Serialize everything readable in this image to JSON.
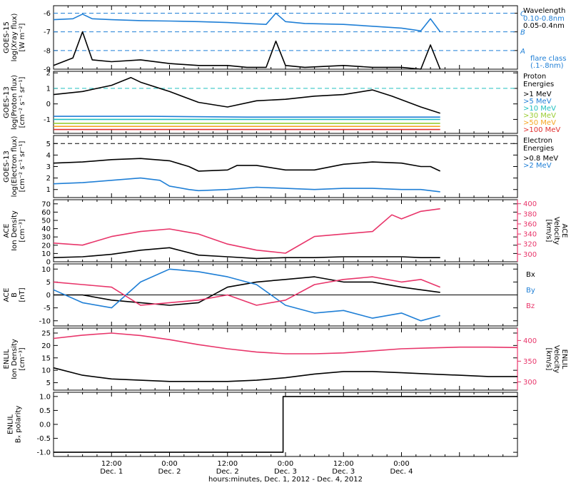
{
  "chart_data": {
    "type": "line",
    "time_axis": {
      "xlabel": "hours:minutes, Dec.  1, 2012 - Dec.  4, 2012",
      "range_hours": [
        0,
        96
      ],
      "ticks": [
        {
          "hour": 12,
          "time": "12:00",
          "day": "Dec. 1"
        },
        {
          "hour": 24,
          "time": "0:00",
          "day": "Dec. 2"
        },
        {
          "hour": 36,
          "time": "12:00",
          "day": "Dec. 2"
        },
        {
          "hour": 48,
          "time": "0:00",
          "day": "Dec. 3"
        },
        {
          "hour": 60,
          "time": "12:00",
          "day": "Dec. 3"
        },
        {
          "hour": 72,
          "time": "0:00",
          "day": "Dec. 4"
        }
      ]
    },
    "panels": [
      {
        "id": "xray",
        "ylabel_lines": [
          "GOES-15",
          "log(Xray flux)",
          "[W m⁻²]"
        ],
        "ylim": [
          -9,
          -5.6
        ],
        "yticks": [
          "-9",
          "-8",
          "-7",
          "-6"
        ],
        "ytick_values": [
          -9,
          -8,
          -7,
          -6
        ],
        "legend_title": "Wavelength",
        "series": [
          {
            "name": "0.10-0.8nm",
            "color": "#1f7fd6",
            "x": [
              0,
              4,
              6,
              8,
              12,
              18,
              24,
              30,
              36,
              40,
              44,
              46,
              48,
              52,
              60,
              66,
              72,
              76,
              78,
              80
            ],
            "y": [
              -6.35,
              -6.3,
              -6.05,
              -6.3,
              -6.35,
              -6.4,
              -6.42,
              -6.45,
              -6.5,
              -6.55,
              -6.6,
              -6.0,
              -6.45,
              -6.55,
              -6.6,
              -6.7,
              -6.8,
              -6.95,
              -6.3,
              -7.0
            ]
          },
          {
            "name": "0.05-0.4nm",
            "color": "#000000",
            "x": [
              0,
              4,
              6,
              8,
              12,
              18,
              24,
              30,
              36,
              40,
              44,
              46,
              48,
              52,
              60,
              66,
              72,
              76,
              78,
              80
            ],
            "y": [
              -8.8,
              -8.4,
              -7.0,
              -8.5,
              -8.6,
              -8.5,
              -8.7,
              -8.8,
              -8.8,
              -8.9,
              -8.9,
              -7.5,
              -8.8,
              -8.9,
              -8.8,
              -8.9,
              -8.9,
              -9.0,
              -7.7,
              -9.0
            ]
          }
        ],
        "thresholds": [
          {
            "value": -6,
            "label": "C"
          },
          {
            "value": -7,
            "label": "B"
          },
          {
            "value": -8,
            "label": "A"
          }
        ],
        "threshold_color": "#1f7fd6",
        "legend_extra": [
          "flare class",
          "(.1-.8nm)"
        ]
      },
      {
        "id": "proton",
        "ylabel_lines": [
          "GOES-13",
          "log(Proton flux)",
          "[cm⁻² s⁻¹ sr⁻¹]"
        ],
        "ylim": [
          -1.9,
          2.1
        ],
        "yticks": [
          "-1",
          "0",
          "1",
          "2"
        ],
        "ytick_values": [
          -1,
          0,
          1,
          2
        ],
        "legend_title": "Proton",
        "legend_title2": "Energies",
        "reference_line": 1.0,
        "series": [
          {
            "name": ">1 MeV",
            "color": "#000000",
            "x": [
              0,
              6,
              12,
              16,
              18,
              24,
              30,
              36,
              42,
              48,
              54,
              60,
              66,
              70,
              76,
              80
            ],
            "y": [
              0.6,
              0.8,
              1.2,
              1.7,
              1.4,
              0.8,
              0.1,
              -0.2,
              0.2,
              0.3,
              0.5,
              0.6,
              0.9,
              0.5,
              -0.2,
              -0.6
            ]
          },
          {
            "name": ">5 MeV",
            "color": "#1f7fd6",
            "x": [
              0,
              20,
              40,
              60,
              80
            ],
            "y": [
              -0.8,
              -0.8,
              -0.85,
              -0.85,
              -0.85
            ]
          },
          {
            "name": ">10 MeV",
            "color": "#20c0c0",
            "x": [
              0,
              20,
              40,
              60,
              80
            ],
            "y": [
              -1.0,
              -1.0,
              -1.0,
              -1.0,
              -1.0
            ]
          },
          {
            "name": ">30 MeV",
            "color": "#9acd32",
            "x": [
              0,
              20,
              40,
              60,
              80
            ],
            "y": [
              -1.25,
              -1.25,
              -1.25,
              -1.25,
              -1.25
            ]
          },
          {
            "name": ">50 MeV",
            "color": "#f5a623",
            "x": [
              0,
              20,
              40,
              60,
              80
            ],
            "y": [
              -1.45,
              -1.45,
              -1.45,
              -1.45,
              -1.45
            ]
          },
          {
            "name": ">100 MeV",
            "color": "#e03030",
            "x": [
              0,
              20,
              40,
              60,
              80
            ],
            "y": [
              -1.65,
              -1.65,
              -1.65,
              -1.65,
              -1.65
            ]
          }
        ]
      },
      {
        "id": "electron",
        "ylabel_lines": [
          "GOES-13",
          "log(Electron flux)",
          "[cm⁻² s⁻¹ sr⁻¹]"
        ],
        "ylim": [
          0.3,
          5.7
        ],
        "yticks": [
          "1",
          "2",
          "3",
          "4",
          "5"
        ],
        "ytick_values": [
          1,
          2,
          3,
          4,
          5
        ],
        "legend_title": "Electron",
        "legend_title2": "Energies",
        "reference_line": 5.0,
        "series": [
          {
            "name": ">0.8 MeV",
            "color": "#000000",
            "x": [
              0,
              6,
              12,
              18,
              24,
              28,
              30,
              36,
              38,
              42,
              48,
              54,
              60,
              66,
              72,
              76,
              78,
              80
            ],
            "y": [
              3.3,
              3.4,
              3.6,
              3.7,
              3.5,
              3.0,
              2.6,
              2.7,
              3.1,
              3.1,
              2.7,
              2.7,
              3.2,
              3.4,
              3.3,
              3.0,
              3.0,
              2.6
            ]
          },
          {
            "name": ">2 MeV",
            "color": "#1f7fd6",
            "x": [
              0,
              6,
              12,
              18,
              22,
              24,
              28,
              30,
              36,
              42,
              48,
              54,
              60,
              66,
              72,
              76,
              80
            ],
            "y": [
              1.5,
              1.6,
              1.8,
              2.0,
              1.8,
              1.3,
              1.0,
              0.9,
              1.0,
              1.2,
              1.1,
              1.0,
              1.1,
              1.1,
              1.0,
              1.0,
              0.8
            ]
          }
        ]
      },
      {
        "id": "ace_density_velocity",
        "ylabel_lines": [
          "ACE",
          "Ion Density",
          "[cm⁻³]"
        ],
        "ylim": [
          0,
          75
        ],
        "yticks": [
          "0",
          "10",
          "20",
          "30",
          "40",
          "50",
          "60",
          "70"
        ],
        "ytick_values": [
          0,
          10,
          20,
          30,
          40,
          50,
          60,
          70
        ],
        "right_ylabel_lines": [
          "ACE",
          "Velocity",
          "[km/s]"
        ],
        "right_ylim": [
          285,
          408
        ],
        "right_yticks": [
          "300",
          "320",
          "340",
          "360",
          "380",
          "400"
        ],
        "right_ytick_values": [
          300,
          320,
          340,
          360,
          380,
          400
        ],
        "right_color": "#e8356a",
        "series": [
          {
            "name": "Density",
            "axis": "left",
            "color": "#000000",
            "x": [
              0,
              6,
              12,
              18,
              24,
              30,
              36,
              42,
              48,
              54,
              60,
              66,
              72,
              76,
              80
            ],
            "y": [
              5,
              6,
              9,
              14,
              17,
              8,
              6,
              4,
              5,
              5,
              6,
              6,
              6,
              5,
              5
            ]
          },
          {
            "name": "Velocity",
            "axis": "right",
            "color": "#e8356a",
            "x": [
              0,
              6,
              12,
              18,
              24,
              30,
              36,
              42,
              48,
              54,
              60,
              66,
              70,
              72,
              76,
              80
            ],
            "y": [
              322,
              318,
              335,
              345,
              350,
              340,
              320,
              308,
              302,
              335,
              340,
              345,
              378,
              370,
              385,
              390
            ]
          }
        ]
      },
      {
        "id": "ace_b",
        "ylabel_lines": [
          "ACE",
          "B",
          "[nT]"
        ],
        "ylim": [
          -12,
          12
        ],
        "yticks": [
          "-10",
          "-5",
          "0",
          "5",
          "10"
        ],
        "ytick_values": [
          -10,
          -5,
          0,
          5,
          10
        ],
        "zero_line": true,
        "series": [
          {
            "name": "Bx",
            "color": "#000000",
            "x": [
              0,
              6,
              12,
              18,
              24,
              30,
              36,
              42,
              48,
              54,
              60,
              66,
              72,
              76,
              80
            ],
            "y": [
              0,
              0,
              -2,
              -3,
              -4,
              -3,
              3,
              5,
              6,
              7,
              5,
              5,
              3,
              2,
              1
            ]
          },
          {
            "name": "By",
            "color": "#1f7fd6",
            "x": [
              0,
              6,
              12,
              18,
              24,
              30,
              36,
              42,
              48,
              54,
              60,
              66,
              72,
              76,
              80
            ],
            "y": [
              2,
              -3,
              -5,
              5,
              10,
              9,
              7,
              4,
              -4,
              -7,
              -6,
              -9,
              -7,
              -10,
              -8
            ]
          },
          {
            "name": "Bz",
            "color": "#e8356a",
            "x": [
              0,
              6,
              12,
              18,
              24,
              30,
              36,
              42,
              48,
              54,
              60,
              66,
              72,
              76,
              80
            ],
            "y": [
              5,
              4,
              3,
              -4,
              -3,
              -2,
              0,
              -4,
              -2,
              4,
              6,
              7,
              5,
              6,
              3
            ]
          }
        ]
      },
      {
        "id": "enlil_density_velocity",
        "ylabel_lines": [
          "ENLIL",
          "Ion Density",
          "[cm⁻³]"
        ],
        "ylim": [
          2,
          27
        ],
        "yticks": [
          "5",
          "10",
          "15",
          "20",
          "25"
        ],
        "ytick_values": [
          5,
          10,
          15,
          20,
          25
        ],
        "right_ylabel_lines": [
          "ENLIL",
          "Velocity",
          "[km/s]"
        ],
        "right_ylim": [
          280,
          430
        ],
        "right_yticks": [
          "300",
          "350",
          "400"
        ],
        "right_ytick_values": [
          300,
          350,
          400
        ],
        "right_color": "#e8356a",
        "series": [
          {
            "name": "Density",
            "axis": "left",
            "color": "#000000",
            "x": [
              0,
              6,
              12,
              18,
              24,
              30,
              36,
              42,
              48,
              54,
              60,
              66,
              72,
              78,
              84,
              90,
              96
            ],
            "y": [
              11,
              8,
              6.5,
              6,
              5.5,
              5.5,
              5.5,
              6,
              7,
              8.5,
              9.5,
              9.5,
              9,
              8.5,
              8,
              7.5,
              7.5
            ]
          },
          {
            "name": "Velocity",
            "axis": "right",
            "color": "#e8356a",
            "x": [
              0,
              6,
              12,
              18,
              24,
              30,
              36,
              42,
              48,
              54,
              60,
              66,
              72,
              78,
              84,
              90,
              96
            ],
            "y": [
              405,
              413,
              418,
              412,
              402,
              390,
              380,
              372,
              368,
              368,
              370,
              375,
              380,
              382,
              384,
              384,
              383
            ]
          }
        ]
      },
      {
        "id": "enlil_polarity",
        "ylabel_lines": [
          "ENLIL",
          "Bₓ polarity"
        ],
        "ylim": [
          -1.15,
          1.15
        ],
        "yticks": [
          "-1.0",
          "-0.5",
          "0.0",
          "0.5",
          "1.0"
        ],
        "ytick_values": [
          -1.0,
          -0.5,
          0.0,
          0.5,
          1.0
        ],
        "series": [
          {
            "name": "Polarity",
            "color": "#000000",
            "x": [
              0,
              47.5,
              47.5,
              96
            ],
            "y": [
              -1,
              -1,
              1,
              1
            ]
          }
        ]
      }
    ]
  }
}
